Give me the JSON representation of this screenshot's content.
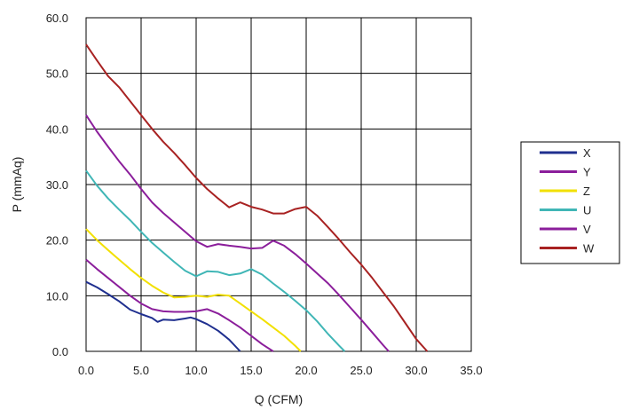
{
  "chart_data": {
    "type": "line",
    "xlabel": "Q (CFM)",
    "ylabel": "P (mmAq)",
    "xlim": [
      0,
      35
    ],
    "ylim": [
      0,
      60
    ],
    "x_ticks": [
      "0.0",
      "5.0",
      "10.0",
      "15.0",
      "20.0",
      "25.0",
      "30.0",
      "35.0"
    ],
    "y_ticks": [
      "0.0",
      "10.0",
      "20.0",
      "30.0",
      "40.0",
      "50.0",
      "60.0"
    ],
    "grid": true,
    "legend_position": "right",
    "series": [
      {
        "name": "X",
        "color": "#1f2f8f",
        "x": [
          0,
          1,
          2,
          3,
          4,
          5,
          6,
          6.5,
          7,
          8,
          9,
          9.5,
          10,
          11,
          12,
          13,
          14
        ],
        "y": [
          12.5,
          11.5,
          10.3,
          9.0,
          7.5,
          6.7,
          6.0,
          5.3,
          5.7,
          5.6,
          5.9,
          6.1,
          5.8,
          4.9,
          3.7,
          2.1,
          0
        ]
      },
      {
        "name": "Y",
        "color": "#8b1e9b",
        "x": [
          0,
          1,
          2,
          3,
          4,
          5,
          6,
          7,
          8,
          9,
          10,
          11,
          12,
          13,
          14,
          15,
          16,
          17
        ],
        "y": [
          16.5,
          14.8,
          13.2,
          11.6,
          10.0,
          8.6,
          7.6,
          7.2,
          7.1,
          7.1,
          7.2,
          7.6,
          6.8,
          5.6,
          4.3,
          2.8,
          1.3,
          0
        ]
      },
      {
        "name": "Z",
        "color": "#f2e000",
        "x": [
          0,
          1,
          2,
          3,
          4,
          5,
          6,
          7,
          8,
          9,
          10,
          11,
          12,
          13,
          14,
          15,
          16,
          17,
          18,
          19,
          19.5
        ],
        "y": [
          22.0,
          20.0,
          18.2,
          16.5,
          14.8,
          13.2,
          11.8,
          10.6,
          9.7,
          9.8,
          10.0,
          9.8,
          10.2,
          10.0,
          8.6,
          7.2,
          5.8,
          4.3,
          2.8,
          1.0,
          0
        ]
      },
      {
        "name": "U",
        "color": "#40b6b6",
        "x": [
          0,
          1,
          2,
          3,
          4,
          5,
          6,
          7,
          8,
          9,
          10,
          11,
          12,
          13,
          14,
          15,
          16,
          17,
          18,
          19,
          20,
          21,
          22,
          23,
          23.5
        ],
        "y": [
          32.5,
          29.8,
          27.5,
          25.5,
          23.6,
          21.5,
          19.5,
          17.8,
          16.1,
          14.5,
          13.5,
          14.4,
          14.3,
          13.7,
          14.0,
          14.8,
          13.8,
          12.2,
          10.7,
          9.1,
          7.4,
          5.4,
          3.1,
          1.0,
          0
        ]
      },
      {
        "name": "V",
        "color": "#8b1e9b",
        "x": [
          0,
          1,
          2,
          3,
          4,
          5,
          6,
          7,
          8,
          9,
          10,
          11,
          12,
          13,
          14,
          15,
          16,
          17,
          18,
          19,
          20,
          21,
          22,
          23,
          24,
          25,
          26,
          27,
          27.5
        ],
        "y": [
          42.5,
          39.5,
          36.8,
          34.2,
          31.8,
          29.2,
          26.8,
          24.9,
          23.2,
          21.5,
          19.8,
          18.8,
          19.3,
          19.0,
          18.8,
          18.5,
          18.6,
          19.9,
          19.0,
          17.5,
          15.8,
          14.0,
          12.2,
          10.1,
          7.9,
          5.7,
          3.4,
          1.1,
          0
        ]
      },
      {
        "name": "W",
        "color": "#a82222",
        "x": [
          0,
          1,
          2,
          3,
          4,
          5,
          6,
          7,
          8,
          9,
          10,
          11,
          12,
          13,
          14,
          15,
          16,
          17,
          18,
          19,
          20,
          21,
          22,
          23,
          24,
          25,
          26,
          27,
          28,
          29,
          30,
          31
        ],
        "y": [
          55.2,
          52.3,
          49.5,
          47.5,
          45.0,
          42.5,
          40.0,
          37.7,
          35.7,
          33.5,
          31.2,
          29.2,
          27.5,
          25.9,
          26.8,
          26.0,
          25.5,
          24.8,
          24.8,
          25.6,
          26.0,
          24.4,
          22.3,
          20.1,
          17.8,
          15.6,
          13.2,
          10.6,
          8.0,
          5.1,
          2.2,
          0
        ]
      }
    ]
  }
}
